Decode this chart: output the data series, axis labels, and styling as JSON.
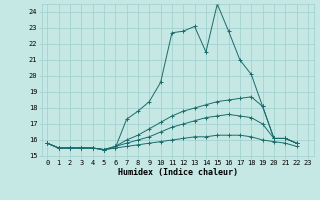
{
  "xlabel": "Humidex (Indice chaleur)",
  "background_color": "#c5e8e5",
  "grid_color": "#9ecece",
  "line_color": "#1a6b6b",
  "xlim": [
    -0.5,
    23.5
  ],
  "ylim": [
    15,
    24.5
  ],
  "yticks": [
    15,
    16,
    17,
    18,
    19,
    20,
    21,
    22,
    23,
    24
  ],
  "xticks": [
    0,
    1,
    2,
    3,
    4,
    5,
    6,
    7,
    8,
    9,
    10,
    11,
    12,
    13,
    14,
    15,
    16,
    17,
    18,
    19,
    20,
    21,
    22,
    23
  ],
  "series": [
    {
      "x": [
        0,
        1,
        2,
        3,
        4,
        5,
        6,
        7,
        8,
        9,
        10,
        11,
        12,
        13,
        14,
        15,
        16,
        17,
        18,
        19,
        20,
        21,
        22
      ],
      "y": [
        15.8,
        15.5,
        15.5,
        15.5,
        15.5,
        15.4,
        15.5,
        17.3,
        17.8,
        18.4,
        19.6,
        22.7,
        22.8,
        23.1,
        21.5,
        24.5,
        22.8,
        21.0,
        20.1,
        18.1,
        16.1,
        16.1,
        15.8
      ]
    },
    {
      "x": [
        0,
        1,
        2,
        3,
        4,
        5,
        6,
        7,
        8,
        9,
        10,
        11,
        12,
        13,
        14,
        15,
        16,
        17,
        18,
        19,
        20,
        21,
        22
      ],
      "y": [
        15.8,
        15.5,
        15.5,
        15.5,
        15.5,
        15.4,
        15.6,
        16.0,
        16.3,
        16.7,
        17.1,
        17.5,
        17.8,
        18.0,
        18.2,
        18.4,
        18.5,
        18.6,
        18.7,
        18.1,
        16.1,
        16.1,
        15.8
      ]
    },
    {
      "x": [
        0,
        1,
        2,
        3,
        4,
        5,
        6,
        7,
        8,
        9,
        10,
        11,
        12,
        13,
        14,
        15,
        16,
        17,
        18,
        19,
        20,
        21,
        22
      ],
      "y": [
        15.8,
        15.5,
        15.5,
        15.5,
        15.5,
        15.4,
        15.6,
        15.8,
        16.0,
        16.2,
        16.5,
        16.8,
        17.0,
        17.2,
        17.4,
        17.5,
        17.6,
        17.5,
        17.4,
        17.0,
        16.1,
        16.1,
        15.8
      ]
    },
    {
      "x": [
        0,
        1,
        2,
        3,
        4,
        5,
        6,
        7,
        8,
        9,
        10,
        11,
        12,
        13,
        14,
        15,
        16,
        17,
        18,
        19,
        20,
        21,
        22
      ],
      "y": [
        15.8,
        15.5,
        15.5,
        15.5,
        15.5,
        15.4,
        15.5,
        15.6,
        15.7,
        15.8,
        15.9,
        16.0,
        16.1,
        16.2,
        16.2,
        16.3,
        16.3,
        16.3,
        16.2,
        16.0,
        15.9,
        15.8,
        15.6
      ]
    }
  ]
}
